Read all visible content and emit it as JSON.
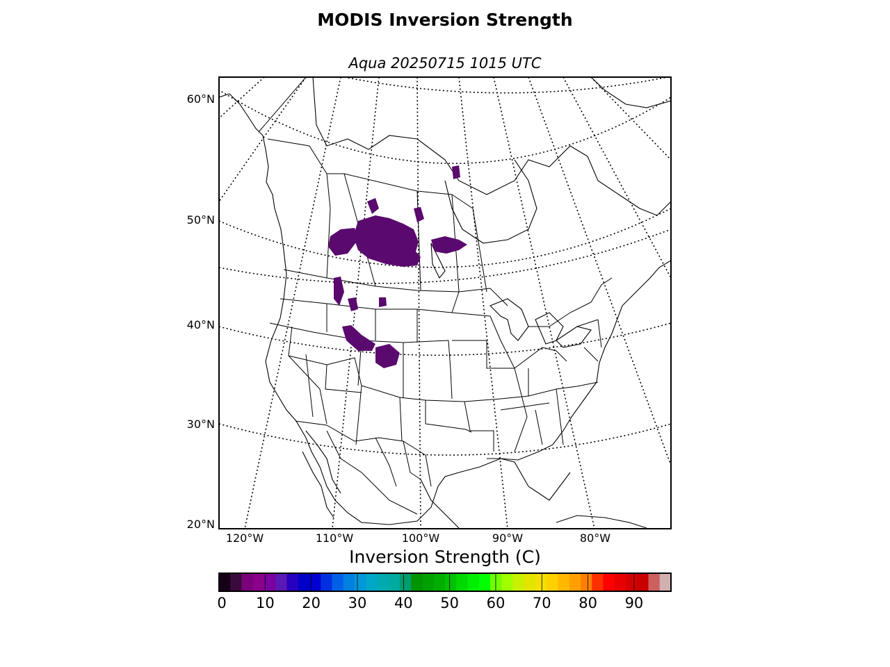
{
  "title": "MODIS Inversion Strength",
  "subtitle": "Aqua 20250715 1015 UTC",
  "map": {
    "projection": "lambert-conformal",
    "region": "North America",
    "lat_labels": [
      "60°N",
      "50°N",
      "40°N",
      "30°N",
      "20°N"
    ],
    "lon_labels": [
      "120°W",
      "110°W",
      "100°W",
      "90°W",
      "80°W"
    ],
    "boundary_color": "#000000",
    "graticule_style": "dotted",
    "data_color": "#5a0a6e"
  },
  "colorbar": {
    "label": "Inversion Strength (C)",
    "min": 0,
    "max": 98,
    "ticks": [
      "0",
      "10",
      "20",
      "30",
      "40",
      "50",
      "60",
      "70",
      "80",
      "90"
    ],
    "colors": [
      "#160018",
      "#3a0a3e",
      "#7c007c",
      "#8a008a",
      "#7a00a0",
      "#5a18b4",
      "#2800c0",
      "#0000c8",
      "#0000d0",
      "#0030e0",
      "#0060e8",
      "#0080e0",
      "#0098d8",
      "#00a8c8",
      "#00aab0",
      "#00aaa0",
      "#009c70",
      "#009400",
      "#00a000",
      "#00ae00",
      "#00c000",
      "#00d800",
      "#00ee00",
      "#00ff00",
      "#70ff00",
      "#a0ff00",
      "#c8f000",
      "#e4e400",
      "#f4e000",
      "#ffd000",
      "#ffb800",
      "#ffa000",
      "#ff8000",
      "#ff3000",
      "#ff0000",
      "#e80000",
      "#d40000",
      "#c80000",
      "#cc6060",
      "#d0b0b0"
    ]
  }
}
